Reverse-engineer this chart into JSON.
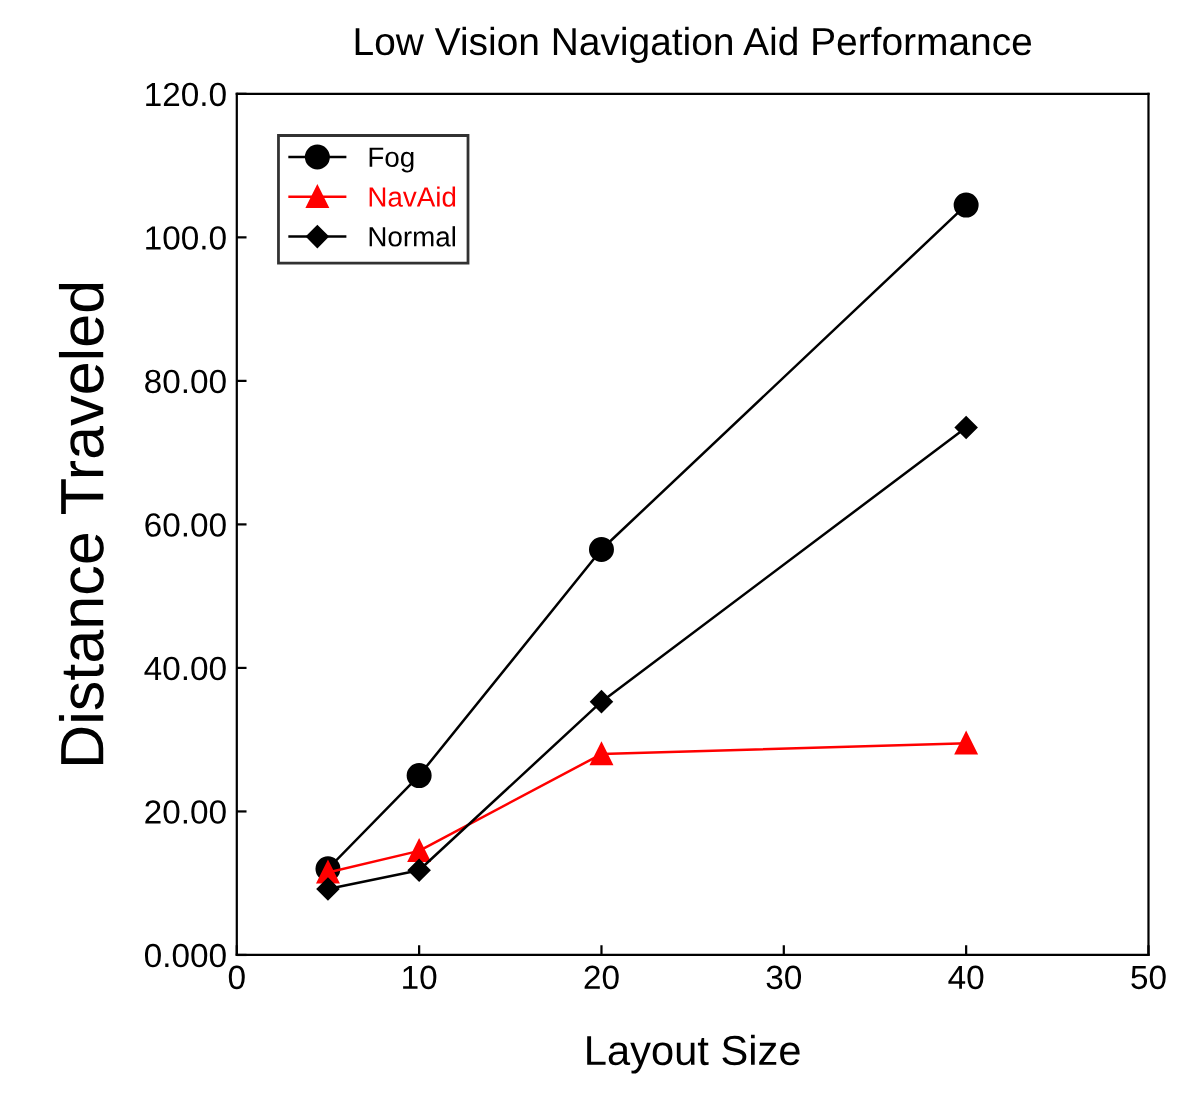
{
  "chart_data": {
    "type": "line",
    "title": "Low Vision Navigation Aid Performance",
    "xlabel": "Layout Size",
    "ylabel": "Distance Traveled",
    "x": [
      5,
      10,
      20,
      40
    ],
    "series": [
      {
        "name": "Fog",
        "color": "#000000",
        "marker": "circle",
        "values": [
          12,
          25,
          56.5,
          104.5
        ]
      },
      {
        "name": "NavAid",
        "color": "#ff0000",
        "marker": "triangle",
        "values": [
          11.5,
          14.5,
          28,
          29.5
        ]
      },
      {
        "name": "Normal",
        "color": "#000000",
        "marker": "diamond",
        "values": [
          9.2,
          11.8,
          35.3,
          73.5
        ]
      }
    ],
    "xlim": [
      0,
      50
    ],
    "xticks": [
      0,
      10,
      20,
      30,
      40,
      50
    ],
    "ylim": [
      0,
      120
    ],
    "yticks": [
      {
        "value": 0,
        "label": "0.000"
      },
      {
        "value": 20,
        "label": "20.00"
      },
      {
        "value": 40,
        "label": "40.00"
      },
      {
        "value": 60,
        "label": "60.00"
      },
      {
        "value": 80,
        "label": "80.00"
      },
      {
        "value": 100,
        "label": "100.0"
      },
      {
        "value": 120,
        "label": "120.0"
      }
    ],
    "grid": false,
    "legend": "top left",
    "line_style": "solid"
  }
}
